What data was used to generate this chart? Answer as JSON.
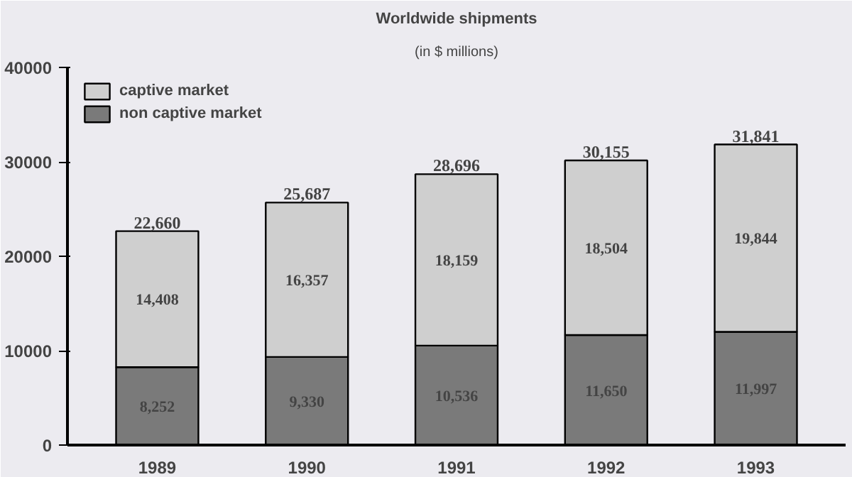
{
  "chart_data": {
    "type": "bar",
    "title": "Worldwide shipments",
    "subtitle": "(in $ millions)",
    "categories": [
      "1989",
      "1990",
      "1991",
      "1992",
      "1993"
    ],
    "stacked": true,
    "series": [
      {
        "name": "non captive market",
        "color": "#7a7a7a",
        "values": [
          8252,
          9330,
          10536,
          11650,
          11997
        ],
        "value_labels": [
          "8,252",
          "9,330",
          "10,536",
          "11,650",
          "11,997"
        ]
      },
      {
        "name": "captive market",
        "color": "#cfcfcf",
        "values": [
          14408,
          16357,
          18159,
          18504,
          19844
        ],
        "value_labels": [
          "14,408",
          "16,357",
          "18,159",
          "18,504",
          "19,844"
        ]
      }
    ],
    "totals": [
      "22,660",
      "25,687",
      "28,696",
      "30,155",
      "31,841"
    ],
    "ylim": [
      0,
      40000
    ],
    "yticks": [
      0,
      10000,
      20000,
      30000,
      40000
    ],
    "grid": false,
    "legend": "top left"
  }
}
